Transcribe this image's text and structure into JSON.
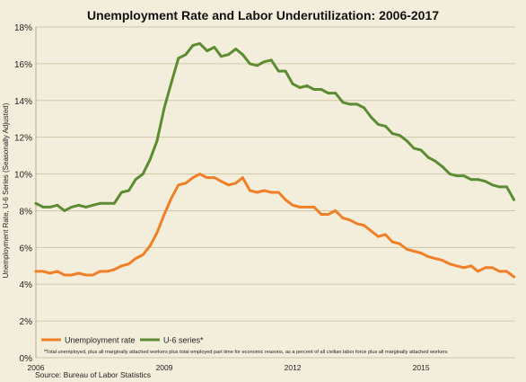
{
  "chart_data": {
    "type": "line",
    "title": "Unemployment Rate and Labor Underutilization:  2006-2017",
    "ylabel": "Unemployment Rate, U-6 Series (Seasonally Adjusted)",
    "xlim": [
      2006.0,
      2017.2
    ],
    "ylim": [
      0,
      18
    ],
    "yticks": [
      0,
      2,
      4,
      6,
      8,
      10,
      12,
      14,
      16,
      18
    ],
    "ytick_labels": [
      "0%",
      "2%",
      "4%",
      "6%",
      "8%",
      "10%",
      "12%",
      "14%",
      "16%",
      "18%"
    ],
    "xticks": [
      2006,
      2009,
      2012,
      2015
    ],
    "xtick_labels": [
      "2006",
      "2009",
      "2012",
      "2015"
    ],
    "grid": true,
    "legend_position": "bottom-left",
    "colors": {
      "unemployment": "#f07f28",
      "u6": "#5b8c32",
      "grid": "#cfc7a9",
      "background": "#f3eedb"
    },
    "series": [
      {
        "name": "Unemployment rate",
        "color": "#f07f28",
        "x": [
          2006.0,
          2006.17,
          2006.33,
          2006.5,
          2006.67,
          2006.83,
          2007.0,
          2007.17,
          2007.33,
          2007.5,
          2007.67,
          2007.83,
          2008.0,
          2008.17,
          2008.33,
          2008.5,
          2008.67,
          2008.83,
          2009.0,
          2009.17,
          2009.33,
          2009.5,
          2009.67,
          2009.83,
          2010.0,
          2010.17,
          2010.33,
          2010.5,
          2010.67,
          2010.83,
          2011.0,
          2011.17,
          2011.33,
          2011.5,
          2011.67,
          2011.83,
          2012.0,
          2012.17,
          2012.33,
          2012.5,
          2012.67,
          2012.83,
          2013.0,
          2013.17,
          2013.33,
          2013.5,
          2013.67,
          2013.83,
          2014.0,
          2014.17,
          2014.33,
          2014.5,
          2014.67,
          2014.83,
          2015.0,
          2015.17,
          2015.33,
          2015.5,
          2015.67,
          2015.83,
          2016.0,
          2016.17,
          2016.33,
          2016.5,
          2016.67,
          2016.83,
          2017.0,
          2017.17
        ],
        "values": [
          4.7,
          4.7,
          4.6,
          4.7,
          4.5,
          4.5,
          4.6,
          4.5,
          4.5,
          4.7,
          4.7,
          4.8,
          5.0,
          5.1,
          5.4,
          5.6,
          6.1,
          6.8,
          7.8,
          8.7,
          9.4,
          9.5,
          9.8,
          10.0,
          9.8,
          9.8,
          9.6,
          9.4,
          9.5,
          9.8,
          9.1,
          9.0,
          9.1,
          9.0,
          9.0,
          8.6,
          8.3,
          8.2,
          8.2,
          8.2,
          7.8,
          7.8,
          8.0,
          7.6,
          7.5,
          7.3,
          7.2,
          6.9,
          6.6,
          6.7,
          6.3,
          6.2,
          5.9,
          5.8,
          5.7,
          5.5,
          5.4,
          5.3,
          5.1,
          5.0,
          4.9,
          5.0,
          4.7,
          4.9,
          4.9,
          4.7,
          4.7,
          4.4
        ]
      },
      {
        "name": "U-6 series*",
        "color": "#5b8c32",
        "x": [
          2006.0,
          2006.17,
          2006.33,
          2006.5,
          2006.67,
          2006.83,
          2007.0,
          2007.17,
          2007.33,
          2007.5,
          2007.67,
          2007.83,
          2008.0,
          2008.17,
          2008.33,
          2008.5,
          2008.67,
          2008.83,
          2009.0,
          2009.17,
          2009.33,
          2009.5,
          2009.67,
          2009.83,
          2010.0,
          2010.17,
          2010.33,
          2010.5,
          2010.67,
          2010.83,
          2011.0,
          2011.17,
          2011.33,
          2011.5,
          2011.67,
          2011.83,
          2012.0,
          2012.17,
          2012.33,
          2012.5,
          2012.67,
          2012.83,
          2013.0,
          2013.17,
          2013.33,
          2013.5,
          2013.67,
          2013.83,
          2014.0,
          2014.17,
          2014.33,
          2014.5,
          2014.67,
          2014.83,
          2015.0,
          2015.17,
          2015.33,
          2015.5,
          2015.67,
          2015.83,
          2016.0,
          2016.17,
          2016.33,
          2016.5,
          2016.67,
          2016.83,
          2017.0,
          2017.17
        ],
        "values": [
          8.4,
          8.2,
          8.2,
          8.3,
          8.0,
          8.2,
          8.3,
          8.2,
          8.3,
          8.4,
          8.4,
          8.4,
          9.0,
          9.1,
          9.7,
          10.0,
          10.8,
          11.8,
          13.6,
          15.0,
          16.3,
          16.5,
          17.0,
          17.1,
          16.7,
          16.9,
          16.4,
          16.5,
          16.8,
          16.5,
          16.0,
          15.9,
          16.1,
          16.2,
          15.6,
          15.6,
          14.9,
          14.7,
          14.8,
          14.6,
          14.6,
          14.4,
          14.4,
          13.9,
          13.8,
          13.8,
          13.6,
          13.1,
          12.7,
          12.6,
          12.2,
          12.1,
          11.8,
          11.4,
          11.3,
          10.9,
          10.7,
          10.4,
          10.0,
          9.9,
          9.9,
          9.7,
          9.7,
          9.6,
          9.4,
          9.3,
          9.3,
          8.6
        ]
      }
    ],
    "footnote": "*Total unemployed, plus all marginally attached workers plus total employed part time for economic reasons, as a percent of all civilian labor force plus all marginally attached workers",
    "source": "Source: Bureau of Labor Statistics"
  }
}
